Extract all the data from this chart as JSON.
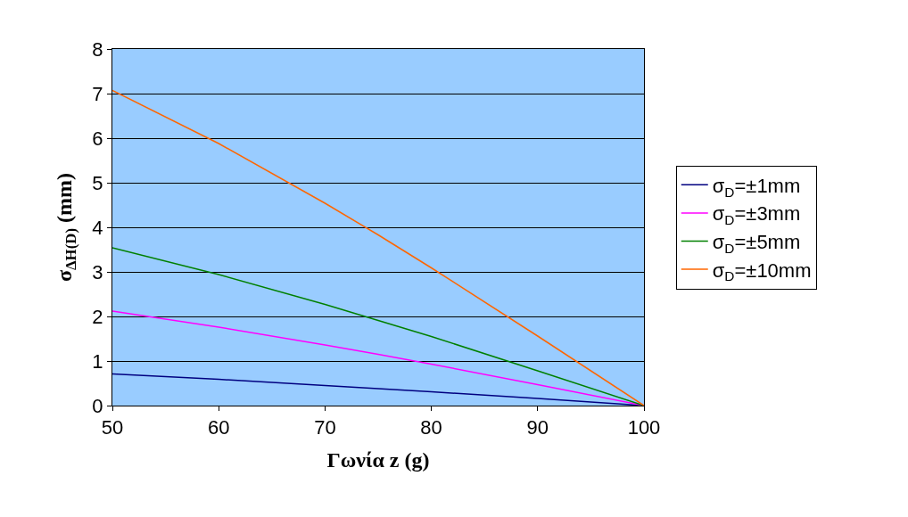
{
  "chart_data": {
    "type": "line",
    "xlabel": "Γωνία z (g)",
    "ylabel": "σ$_{ΔH(D)}$ (mm)",
    "x": [
      50,
      60,
      70,
      75,
      80,
      90,
      100
    ],
    "series": [
      {
        "name": "σ$_{D}$=±1mm",
        "color": "#000080",
        "values": [
          0.71,
          0.59,
          0.45,
          0.38,
          0.31,
          0.16,
          0
        ]
      },
      {
        "name": "σ$_{D}$=±3mm",
        "color": "#ff00ff",
        "values": [
          2.12,
          1.76,
          1.36,
          1.15,
          0.93,
          0.47,
          0
        ]
      },
      {
        "name": "σ$_{D}$=±5mm",
        "color": "#008000",
        "values": [
          3.54,
          2.94,
          2.27,
          1.91,
          1.55,
          0.78,
          0
        ]
      },
      {
        "name": "σ$_{D}$=±10mm",
        "color": "#ff6600",
        "values": [
          7.07,
          5.88,
          4.54,
          3.83,
          3.09,
          1.56,
          0
        ]
      }
    ],
    "xlim": [
      50,
      100
    ],
    "xticks": [
      50,
      60,
      70,
      80,
      90,
      100
    ],
    "ylim": [
      0,
      8
    ],
    "yticks": [
      0,
      1,
      2,
      3,
      4,
      5,
      6,
      7,
      8
    ],
    "grid": "y",
    "legend": "right",
    "marker": "none",
    "line_style": "solid"
  }
}
